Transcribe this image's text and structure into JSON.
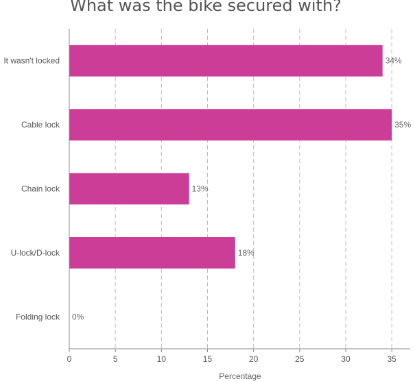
{
  "chart_data": {
    "type": "bar",
    "orientation": "horizontal",
    "title": "What was the bike secured with?",
    "xlabel": "Percentage",
    "ylabel": "",
    "categories": [
      "It wasn't locked",
      "Cable lock",
      "Chain lock",
      "U-lock/D-lock",
      "Folding lock"
    ],
    "values": [
      34,
      35,
      13,
      18,
      0
    ],
    "data_labels": [
      "34%",
      "35%",
      "13%",
      "18%",
      "0%"
    ],
    "xlim": [
      0,
      37
    ],
    "xticks": [
      0,
      5,
      10,
      15,
      20,
      25,
      30,
      35
    ],
    "grid": true,
    "bar_color": "#cc3d98"
  }
}
